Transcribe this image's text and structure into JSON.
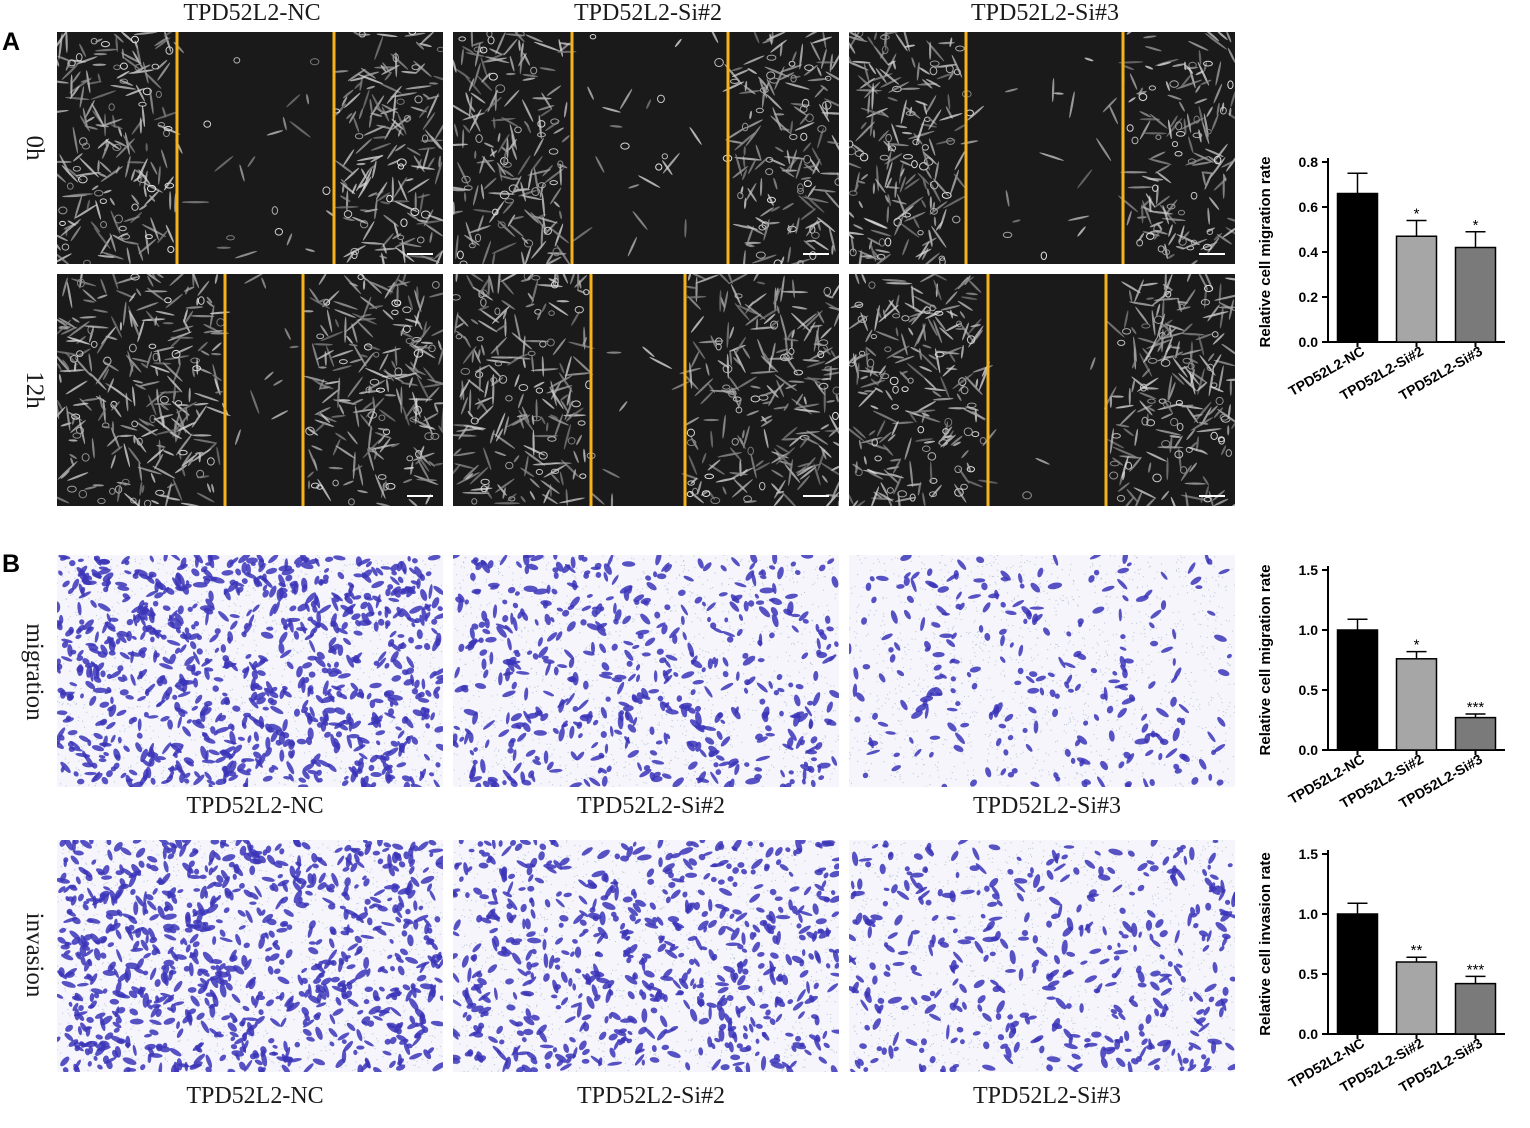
{
  "panels": {
    "A": {
      "label": "A",
      "columns": [
        "TPD52L2-NC",
        "TPD52L2-Si#2",
        "TPD52L2-Si#3"
      ],
      "rows": [
        "0h",
        "12h"
      ]
    },
    "B": {
      "label": "B",
      "rows": [
        "migration",
        "invasion"
      ],
      "captions_top": [
        "TPD52L2-NC",
        "TPD52L2-Si#2",
        "TPD52L2-Si#3"
      ],
      "captions_bottom": [
        "TPD52L2-NC",
        "TPD52L2-Si#2",
        "TPD52L2-Si#3"
      ]
    }
  },
  "colors": {
    "wound_bg": "#1a1a1a",
    "wound_line": "#f5b21b",
    "stain": "#3b35b8",
    "bar_nc": "#000000",
    "bar_si2": "#a6a6a6",
    "bar_si3": "#7a7a7a"
  },
  "chart_data": [
    {
      "type": "bar",
      "categories": [
        "TPD52L2-NC",
        "TPD52L2-Si#2",
        "TPD52L2-Si#3"
      ],
      "values": [
        0.66,
        0.47,
        0.42
      ],
      "errors": [
        0.09,
        0.07,
        0.07
      ],
      "significance": [
        "",
        "*",
        "*"
      ],
      "ylabel": "Relative cell migration rate",
      "ylim": [
        0,
        0.8
      ],
      "yticks": [
        "0.0",
        "0.2",
        "0.4",
        "0.6",
        "0.8"
      ]
    },
    {
      "type": "bar",
      "categories": [
        "TPD52L2-NC",
        "TPD52L2-Si#2",
        "TPD52L2-Si#3"
      ],
      "values": [
        1.0,
        0.76,
        0.27
      ],
      "errors": [
        0.09,
        0.06,
        0.03
      ],
      "significance": [
        "",
        "*",
        "***"
      ],
      "ylabel": "Relative cell migration rate",
      "ylim": [
        0,
        1.5
      ],
      "yticks": [
        "0.0",
        "0.5",
        "1.0",
        "1.5"
      ]
    },
    {
      "type": "bar",
      "categories": [
        "TPD52L2-NC",
        "TPD52L2-Si#2",
        "TPD52L2-Si#3"
      ],
      "values": [
        1.0,
        0.6,
        0.42
      ],
      "errors": [
        0.09,
        0.04,
        0.06
      ],
      "significance": [
        "",
        "**",
        "***"
      ],
      "ylabel": "Relative cell invasion rate",
      "ylim": [
        0,
        1.5
      ],
      "yticks": [
        "0.0",
        "0.5",
        "1.0",
        "1.5"
      ]
    }
  ]
}
